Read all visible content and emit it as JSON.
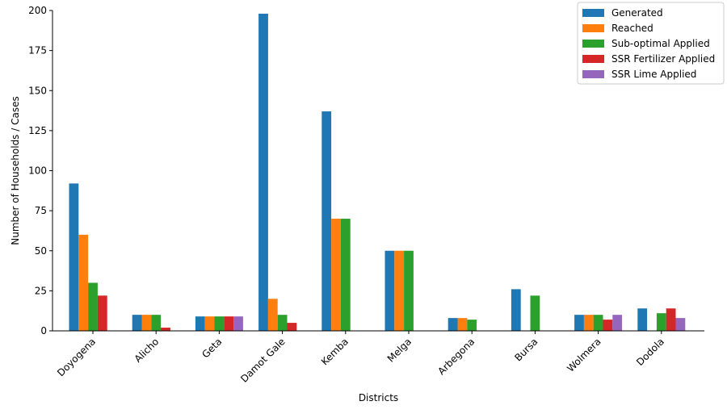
{
  "chart_data": {
    "type": "bar",
    "title": "",
    "xlabel": "Districts",
    "ylabel": "Number of Households / Cases",
    "ylim": [
      0,
      200
    ],
    "yticks": [
      0,
      25,
      50,
      75,
      100,
      125,
      150,
      175,
      200
    ],
    "grid": false,
    "legend_position": "top-right",
    "categories": [
      "Doyogena",
      "Alicho",
      "Geta",
      "Damot Gale",
      "Kemba",
      "Melga",
      "Arbegona",
      "Bursa",
      "Wolmera",
      "Dodola"
    ],
    "series": [
      {
        "name": "Generated",
        "color": "#1f77b4",
        "values": [
          92,
          10,
          9,
          198,
          137,
          50,
          8,
          26,
          10,
          14
        ]
      },
      {
        "name": "Reached",
        "color": "#ff7f0e",
        "values": [
          60,
          10,
          9,
          20,
          70,
          50,
          8,
          0,
          10,
          0
        ]
      },
      {
        "name": "Sub-optimal Applied",
        "color": "#2ca02c",
        "values": [
          30,
          10,
          9,
          10,
          70,
          50,
          7,
          22,
          10,
          11
        ]
      },
      {
        "name": "SSR Fertilizer Applied",
        "color": "#d62728",
        "values": [
          22,
          2,
          9,
          5,
          0,
          0,
          0,
          0,
          7,
          14
        ]
      },
      {
        "name": "SSR Lime Applied",
        "color": "#9467bd",
        "values": [
          0,
          0,
          9,
          0,
          0,
          0,
          0,
          0,
          10,
          8
        ]
      }
    ]
  }
}
